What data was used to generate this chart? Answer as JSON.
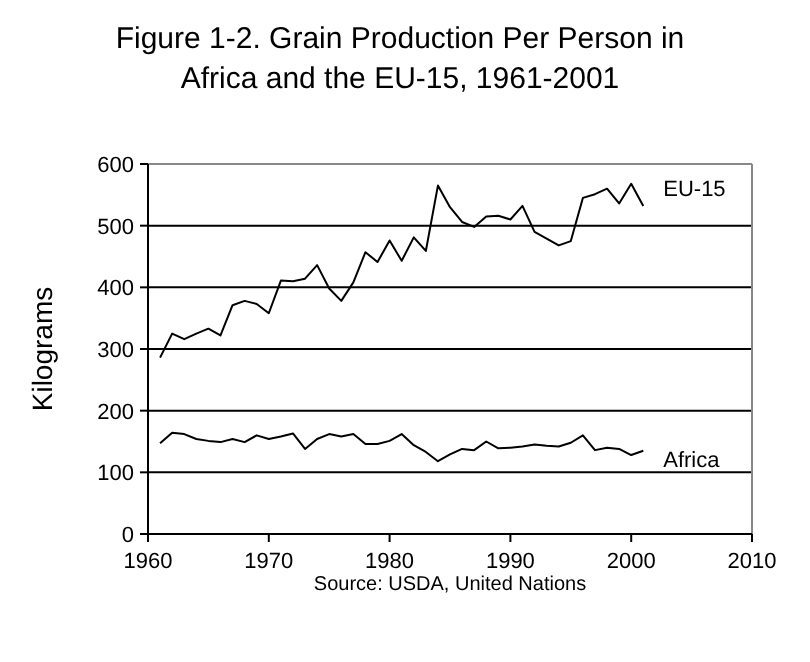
{
  "chart_data": {
    "type": "line",
    "title": "Figure 1-2. Grain Production Per Person in Africa and the EU-15, 1961-2001",
    "ylabel": "Kilograms",
    "x": [
      1961,
      1962,
      1963,
      1964,
      1965,
      1966,
      1967,
      1968,
      1969,
      1970,
      1971,
      1972,
      1973,
      1974,
      1975,
      1976,
      1977,
      1978,
      1979,
      1980,
      1981,
      1982,
      1983,
      1984,
      1985,
      1986,
      1987,
      1988,
      1989,
      1990,
      1991,
      1992,
      1993,
      1994,
      1995,
      1996,
      1997,
      1998,
      1999,
      2000,
      2001
    ],
    "series": [
      {
        "name": "EU-15",
        "color": "#000000",
        "values": [
          286,
          325,
          316,
          325,
          333,
          322,
          371,
          378,
          373,
          358,
          411,
          410,
          414,
          436,
          398,
          378,
          408,
          457,
          441,
          476,
          443,
          481,
          459,
          565,
          530,
          506,
          498,
          515,
          516,
          510,
          532,
          490,
          479,
          468,
          475,
          545,
          551,
          560,
          536,
          568,
          532
        ]
      },
      {
        "name": "Africa",
        "color": "#000000",
        "values": [
          147,
          164,
          162,
          154,
          151,
          149,
          154,
          149,
          160,
          154,
          158,
          163,
          138,
          154,
          162,
          158,
          162,
          146,
          146,
          151,
          162,
          144,
          133,
          118,
          129,
          138,
          136,
          150,
          139,
          140,
          142,
          145,
          143,
          142,
          148,
          160,
          136,
          140,
          138,
          128,
          135
        ]
      }
    ],
    "xlim": [
      1960,
      2010
    ],
    "xticks": [
      1960,
      1970,
      1980,
      1990,
      2000,
      2010
    ],
    "ylim": [
      0,
      600
    ],
    "yticks": [
      0,
      100,
      200,
      300,
      400,
      500,
      600
    ],
    "grid": "y",
    "marker": "none",
    "line_style": "solid",
    "annotations": [
      "Source: USDA, United Nations"
    ]
  }
}
